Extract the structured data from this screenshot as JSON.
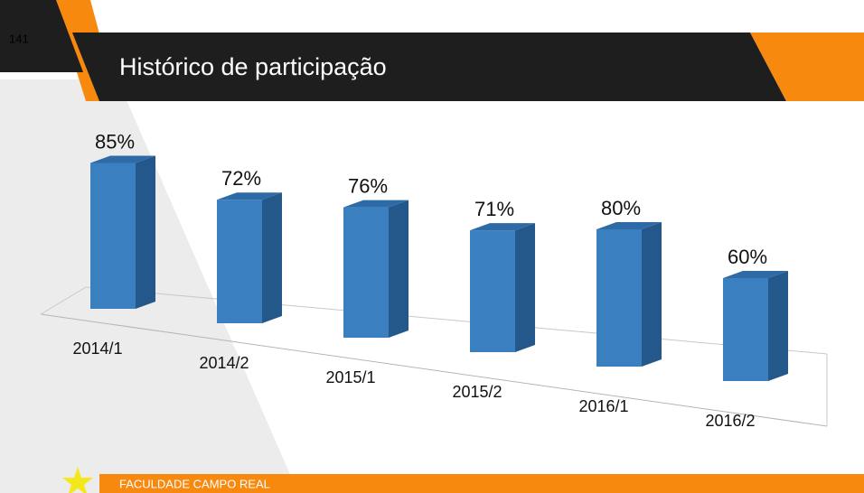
{
  "slide_number": 141,
  "footer": "FACULDADE CAMPO REAL",
  "chart_data": {
    "type": "bar",
    "title": "Histórico de participação",
    "categories": [
      "2014/1",
      "2014/2",
      "2015/1",
      "2015/2",
      "2016/1",
      "2016/2"
    ],
    "values": [
      85,
      72,
      76,
      71,
      80,
      60
    ],
    "value_labels": [
      "85%",
      "72%",
      "76%",
      "71%",
      "80%",
      "60%"
    ],
    "color": "#3a80c1"
  }
}
